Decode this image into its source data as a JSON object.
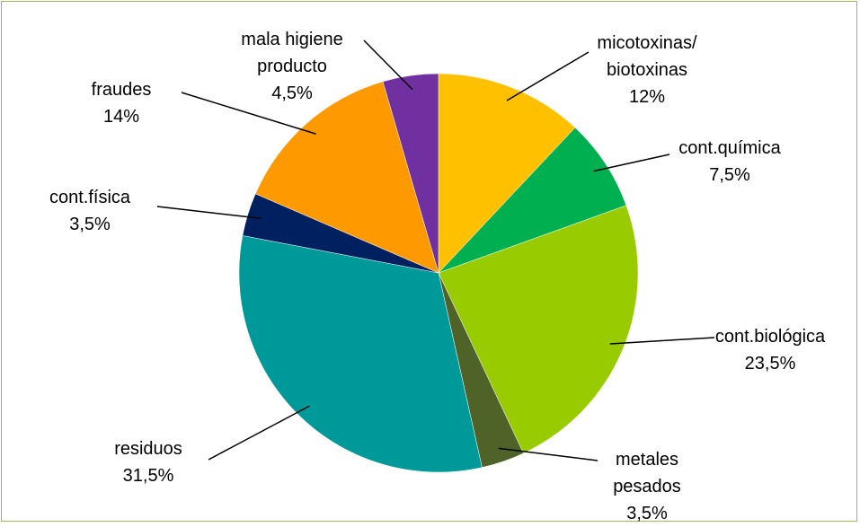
{
  "chart_data": {
    "type": "pie",
    "categories": [
      "micotoxinas/ biotoxinas",
      "cont.química",
      "cont.biológica",
      "metales pesados",
      "residuos",
      "cont.física",
      "fraudes",
      "mala higiene producto"
    ],
    "values": [
      12,
      7.5,
      23.5,
      3.5,
      31.5,
      3.5,
      14,
      4.5
    ],
    "value_labels": [
      "12%",
      "7,5%",
      "23,5%",
      "3,5%",
      "31,5%",
      "3,5%",
      "14%",
      "4,5%"
    ],
    "colors": [
      "#FFC000",
      "#00B050",
      "#99CC00",
      "#4F6228",
      "#009999",
      "#002060",
      "#FF9900",
      "#7030A0"
    ]
  }
}
